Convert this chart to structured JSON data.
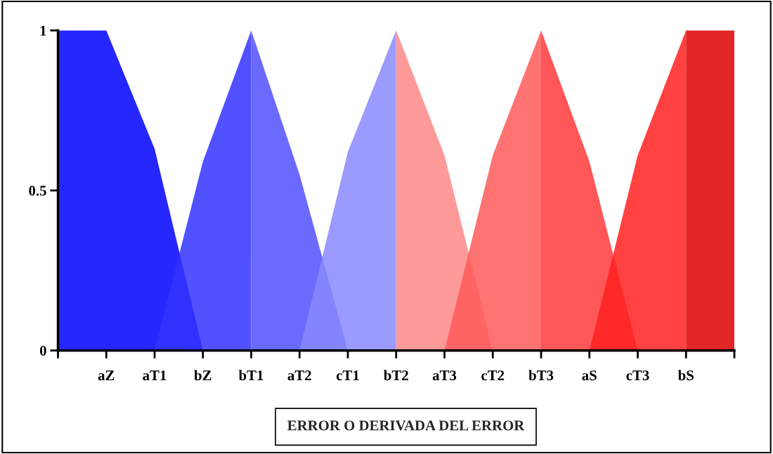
{
  "chart_data": {
    "type": "area",
    "xlabel": "ERROR O DERIVADA DEL ERROR",
    "ylim": [
      0,
      1
    ],
    "yticks": [
      0,
      0.5,
      1
    ],
    "categories": [
      null,
      "aZ",
      "aT1",
      "bZ",
      "bT1",
      "aT2",
      "cT1",
      "bT2",
      "aT3",
      "cT2",
      "bT3",
      "aS",
      "cT3",
      "bS",
      null
    ],
    "series": [
      {
        "color": "#0000ff",
        "values": [
          1,
          1,
          0.63,
          0,
          null,
          null,
          null,
          null,
          null,
          null,
          null,
          null,
          null,
          null,
          null
        ]
      },
      {
        "color": "#3333ff",
        "values": [
          null,
          null,
          0,
          0.59,
          1,
          null,
          null,
          null,
          null,
          null,
          null,
          null,
          null,
          null,
          null
        ]
      },
      {
        "color": "#5050ff",
        "values": [
          null,
          null,
          null,
          null,
          1,
          0.55,
          0,
          null,
          null,
          null,
          null,
          null,
          null,
          null,
          null
        ]
      },
      {
        "color": "#8888ff",
        "values": [
          null,
          null,
          null,
          null,
          null,
          0,
          0.62,
          1,
          null,
          null,
          null,
          null,
          null,
          null,
          null
        ]
      },
      {
        "color": "#ff8888",
        "values": [
          null,
          null,
          null,
          null,
          null,
          null,
          null,
          1,
          0.61,
          0,
          null,
          null,
          null,
          null,
          null
        ]
      },
      {
        "color": "#ff5a5a",
        "values": [
          null,
          null,
          null,
          null,
          null,
          null,
          null,
          null,
          0,
          0.61,
          1,
          null,
          null,
          null,
          null
        ]
      },
      {
        "color": "#ff3a3a",
        "values": [
          null,
          null,
          null,
          null,
          null,
          null,
          null,
          null,
          null,
          null,
          1,
          0.59,
          0,
          null,
          null
        ]
      },
      {
        "color": "#ff2020",
        "values": [
          null,
          null,
          null,
          null,
          null,
          null,
          null,
          null,
          null,
          null,
          null,
          0,
          0.61,
          1,
          null
        ]
      },
      {
        "color": "#dd0000",
        "values": [
          null,
          null,
          null,
          null,
          null,
          null,
          null,
          null,
          null,
          null,
          null,
          null,
          null,
          1,
          1
        ]
      }
    ],
    "grid": false,
    "legend": false
  }
}
